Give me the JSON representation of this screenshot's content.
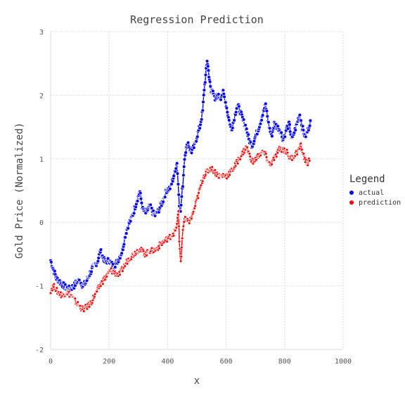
{
  "chart_data": {
    "type": "scatter",
    "title": "Regression Prediction",
    "xlabel": "x",
    "ylabel": "Gold Price (Normalized)",
    "xlim": [
      0,
      1000
    ],
    "ylim": [
      -2,
      3
    ],
    "x_ticks": [
      0,
      200,
      400,
      600,
      800,
      1000
    ],
    "y_ticks": [
      -2,
      -1,
      0,
      1,
      2,
      3
    ],
    "grid": true,
    "legend": {
      "title": "Legend",
      "placement": "right"
    },
    "series": [
      {
        "name": "actual",
        "color": "#0000ff",
        "anchors": [
          [
            0,
            -0.6
          ],
          [
            10,
            -0.75
          ],
          [
            20,
            -0.88
          ],
          [
            35,
            -0.95
          ],
          [
            50,
            -1.02
          ],
          [
            65,
            -1.05
          ],
          [
            80,
            -1.0
          ],
          [
            90,
            -0.93
          ],
          [
            100,
            -0.92
          ],
          [
            110,
            -1.0
          ],
          [
            120,
            -0.95
          ],
          [
            130,
            -0.85
          ],
          [
            145,
            -0.7
          ],
          [
            160,
            -0.62
          ],
          [
            170,
            -0.45
          ],
          [
            185,
            -0.62
          ],
          [
            200,
            -0.6
          ],
          [
            215,
            -0.7
          ],
          [
            230,
            -0.6
          ],
          [
            245,
            -0.45
          ],
          [
            255,
            -0.2
          ],
          [
            265,
            -0.05
          ],
          [
            275,
            0.05
          ],
          [
            285,
            0.18
          ],
          [
            295,
            0.35
          ],
          [
            305,
            0.48
          ],
          [
            315,
            0.2
          ],
          [
            325,
            0.15
          ],
          [
            340,
            0.25
          ],
          [
            355,
            0.1
          ],
          [
            370,
            0.2
          ],
          [
            385,
            0.35
          ],
          [
            395,
            0.5
          ],
          [
            410,
            0.55
          ],
          [
            425,
            0.8
          ],
          [
            432,
            0.95
          ],
          [
            436,
            0.6
          ],
          [
            440,
            0.3
          ],
          [
            444,
            0.15
          ],
          [
            448,
            0.4
          ],
          [
            452,
            0.6
          ],
          [
            456,
            0.9
          ],
          [
            460,
            1.1
          ],
          [
            470,
            1.25
          ],
          [
            480,
            1.1
          ],
          [
            492,
            1.2
          ],
          [
            500,
            1.35
          ],
          [
            510,
            1.5
          ],
          [
            520,
            1.75
          ],
          [
            525,
            2.1
          ],
          [
            530,
            2.3
          ],
          [
            535,
            2.55
          ],
          [
            538,
            2.45
          ],
          [
            543,
            2.25
          ],
          [
            548,
            2.05
          ],
          [
            555,
            2.1
          ],
          [
            562,
            1.9
          ],
          [
            570,
            2.0
          ],
          [
            580,
            1.95
          ],
          [
            590,
            2.05
          ],
          [
            600,
            1.85
          ],
          [
            610,
            1.6
          ],
          [
            618,
            1.45
          ],
          [
            628,
            1.65
          ],
          [
            638,
            1.85
          ],
          [
            648,
            1.75
          ],
          [
            658,
            1.6
          ],
          [
            668,
            1.5
          ],
          [
            678,
            1.3
          ],
          [
            688,
            1.2
          ],
          [
            700,
            1.35
          ],
          [
            712,
            1.5
          ],
          [
            725,
            1.7
          ],
          [
            735,
            1.85
          ],
          [
            745,
            1.55
          ],
          [
            755,
            1.35
          ],
          [
            765,
            1.55
          ],
          [
            775,
            1.5
          ],
          [
            785,
            1.45
          ],
          [
            795,
            1.3
          ],
          [
            805,
            1.45
          ],
          [
            815,
            1.55
          ],
          [
            825,
            1.3
          ],
          [
            835,
            1.45
          ],
          [
            845,
            1.6
          ],
          [
            852,
            1.7
          ],
          [
            860,
            1.5
          ],
          [
            870,
            1.35
          ],
          [
            880,
            1.45
          ],
          [
            888,
            1.6
          ]
        ]
      },
      {
        "name": "prediction",
        "color": "#ff0000",
        "anchors": [
          [
            0,
            -1.07
          ],
          [
            10,
            -1.0
          ],
          [
            25,
            -1.1
          ],
          [
            40,
            -1.15
          ],
          [
            55,
            -1.1
          ],
          [
            70,
            -1.15
          ],
          [
            80,
            -1.22
          ],
          [
            95,
            -1.3
          ],
          [
            110,
            -1.37
          ],
          [
            125,
            -1.33
          ],
          [
            140,
            -1.25
          ],
          [
            150,
            -1.15
          ],
          [
            162,
            -1.05
          ],
          [
            175,
            -0.95
          ],
          [
            190,
            -0.85
          ],
          [
            205,
            -0.75
          ],
          [
            220,
            -0.8
          ],
          [
            235,
            -0.82
          ],
          [
            248,
            -0.72
          ],
          [
            260,
            -0.62
          ],
          [
            272,
            -0.55
          ],
          [
            285,
            -0.5
          ],
          [
            300,
            -0.42
          ],
          [
            312,
            -0.45
          ],
          [
            325,
            -0.5
          ],
          [
            338,
            -0.45
          ],
          [
            350,
            -0.45
          ],
          [
            362,
            -0.42
          ],
          [
            375,
            -0.35
          ],
          [
            388,
            -0.3
          ],
          [
            400,
            -0.25
          ],
          [
            415,
            -0.2
          ],
          [
            428,
            -0.12
          ],
          [
            434,
            0.05
          ],
          [
            437,
            0.15
          ],
          [
            440,
            -0.3
          ],
          [
            443,
            -0.5
          ],
          [
            445,
            -0.65
          ],
          [
            448,
            -0.4
          ],
          [
            452,
            -0.1
          ],
          [
            458,
            0.05
          ],
          [
            470,
            0.0
          ],
          [
            480,
            0.05
          ],
          [
            490,
            0.2
          ],
          [
            500,
            0.35
          ],
          [
            512,
            0.55
          ],
          [
            522,
            0.72
          ],
          [
            535,
            0.8
          ],
          [
            548,
            0.85
          ],
          [
            560,
            0.8
          ],
          [
            575,
            0.73
          ],
          [
            590,
            0.74
          ],
          [
            600,
            0.72
          ],
          [
            612,
            0.78
          ],
          [
            625,
            0.85
          ],
          [
            638,
            0.95
          ],
          [
            650,
            1.05
          ],
          [
            660,
            1.12
          ],
          [
            670,
            1.18
          ],
          [
            680,
            1.05
          ],
          [
            692,
            0.95
          ],
          [
            705,
            1.02
          ],
          [
            718,
            1.08
          ],
          [
            730,
            1.1
          ],
          [
            740,
            1.0
          ],
          [
            750,
            0.9
          ],
          [
            760,
            0.97
          ],
          [
            770,
            1.05
          ],
          [
            782,
            1.15
          ],
          [
            795,
            1.15
          ],
          [
            808,
            1.1
          ],
          [
            820,
            1.0
          ],
          [
            832,
            1.05
          ],
          [
            845,
            1.12
          ],
          [
            855,
            1.2
          ],
          [
            865,
            1.05
          ],
          [
            875,
            0.92
          ],
          [
            885,
            0.97
          ]
        ]
      }
    ]
  }
}
